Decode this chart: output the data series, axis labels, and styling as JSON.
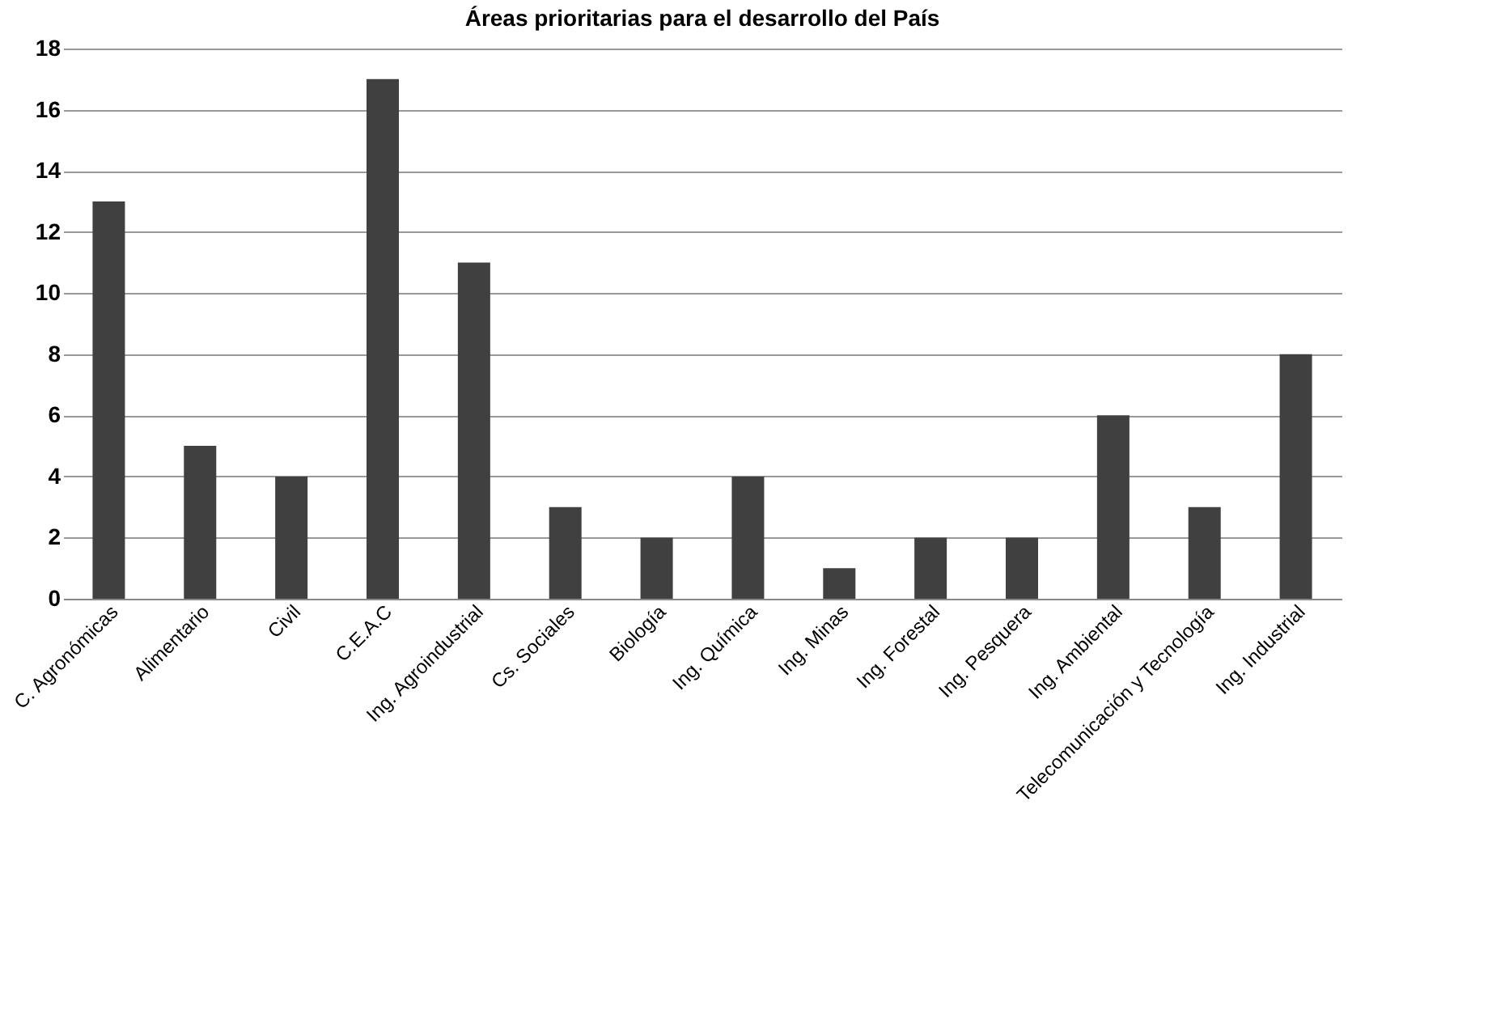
{
  "chart_data": {
    "type": "bar",
    "title": "Áreas prioritarias para el desarrollo del País",
    "categories": [
      "C. Agronómicas",
      "Alimentario",
      "Civil",
      "C.E.A.C",
      "Ing. Agroindustrial",
      "Cs. Sociales",
      "Biología",
      "Ing. Química",
      "Ing. Minas",
      "Ing. Forestal",
      "Ing. Pesquera",
      "Ing. Ambiental",
      "Telecomunicación y Tecnología",
      "Ing. Industrial"
    ],
    "values": [
      13,
      5,
      4,
      17,
      11,
      3,
      2,
      4,
      1,
      2,
      2,
      6,
      3,
      8
    ],
    "color": "#404040",
    "ylim": [
      0,
      18
    ],
    "yticks": [
      0,
      2,
      4,
      6,
      8,
      10,
      12,
      14,
      16,
      18
    ],
    "grid": "y"
  }
}
